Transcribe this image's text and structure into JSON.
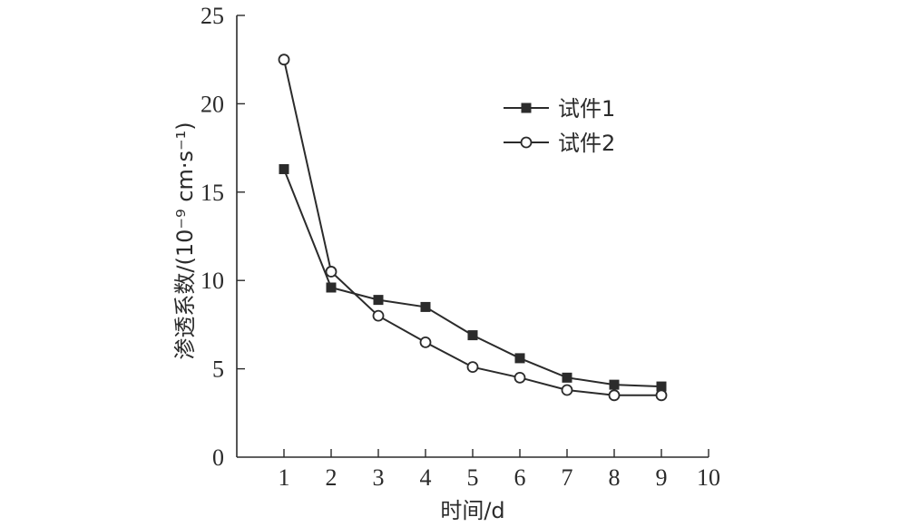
{
  "chart_data": {
    "type": "line",
    "title": "",
    "xlabel": "时间/d",
    "ylabel": "渗透系数/(10⁻⁹ cm·s⁻¹)",
    "xlim": [
      0,
      10
    ],
    "ylim": [
      0,
      25
    ],
    "xticks": [
      1,
      2,
      3,
      4,
      5,
      6,
      7,
      8,
      9,
      10
    ],
    "yticks": [
      0,
      5,
      10,
      15,
      20,
      25
    ],
    "grid": false,
    "legend_position": "top-right",
    "x": [
      1,
      2,
      3,
      4,
      5,
      6,
      7,
      8,
      9
    ],
    "series": [
      {
        "name": "试件1",
        "marker": "filled-square",
        "color": "#2b2b2b",
        "values": [
          16.3,
          9.6,
          8.9,
          8.5,
          6.9,
          5.6,
          4.5,
          4.1,
          4.0
        ]
      },
      {
        "name": "试件2",
        "marker": "open-circle",
        "color": "#2b2b2b",
        "values": [
          22.5,
          10.5,
          8.0,
          6.5,
          5.1,
          4.5,
          3.8,
          3.5,
          3.5
        ]
      }
    ]
  }
}
